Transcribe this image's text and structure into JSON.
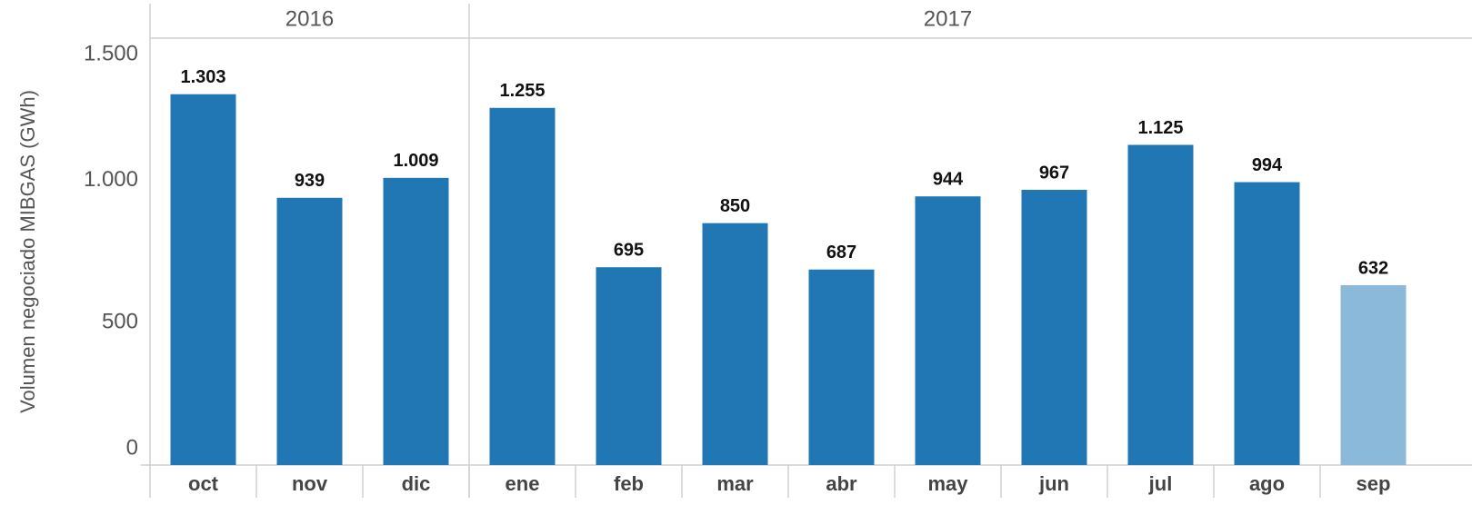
{
  "chart_data": {
    "type": "bar",
    "y_label": "Volumen negociado MIBGAS (GWh)",
    "groups": [
      {
        "label": "2016",
        "span": 3
      },
      {
        "label": "2017",
        "span": 9
      }
    ],
    "categories": [
      "oct",
      "nov",
      "dic",
      "ene",
      "feb",
      "mar",
      "abr",
      "may",
      "jun",
      "jul",
      "ago",
      "sep"
    ],
    "values": [
      1303,
      939,
      1009,
      1255,
      695,
      850,
      687,
      944,
      967,
      1125,
      994,
      632
    ],
    "value_labels": [
      "1.303",
      "939",
      "1.009",
      "1.255",
      "695",
      "850",
      "687",
      "944",
      "967",
      "1.125",
      "994",
      "632"
    ],
    "colors": [
      "#2177b4",
      "#2177b4",
      "#2177b4",
      "#2177b4",
      "#2177b4",
      "#2177b4",
      "#2177b4",
      "#2177b4",
      "#2177b4",
      "#2177b4",
      "#2177b4",
      "#8bb9d9"
    ],
    "ylim": [
      0,
      1500
    ],
    "yticks": [
      0,
      500,
      {
        "value": 1000,
        "label": "1.000"
      },
      {
        "value": 1500,
        "label": "1.500"
      }
    ],
    "grid": false
  }
}
